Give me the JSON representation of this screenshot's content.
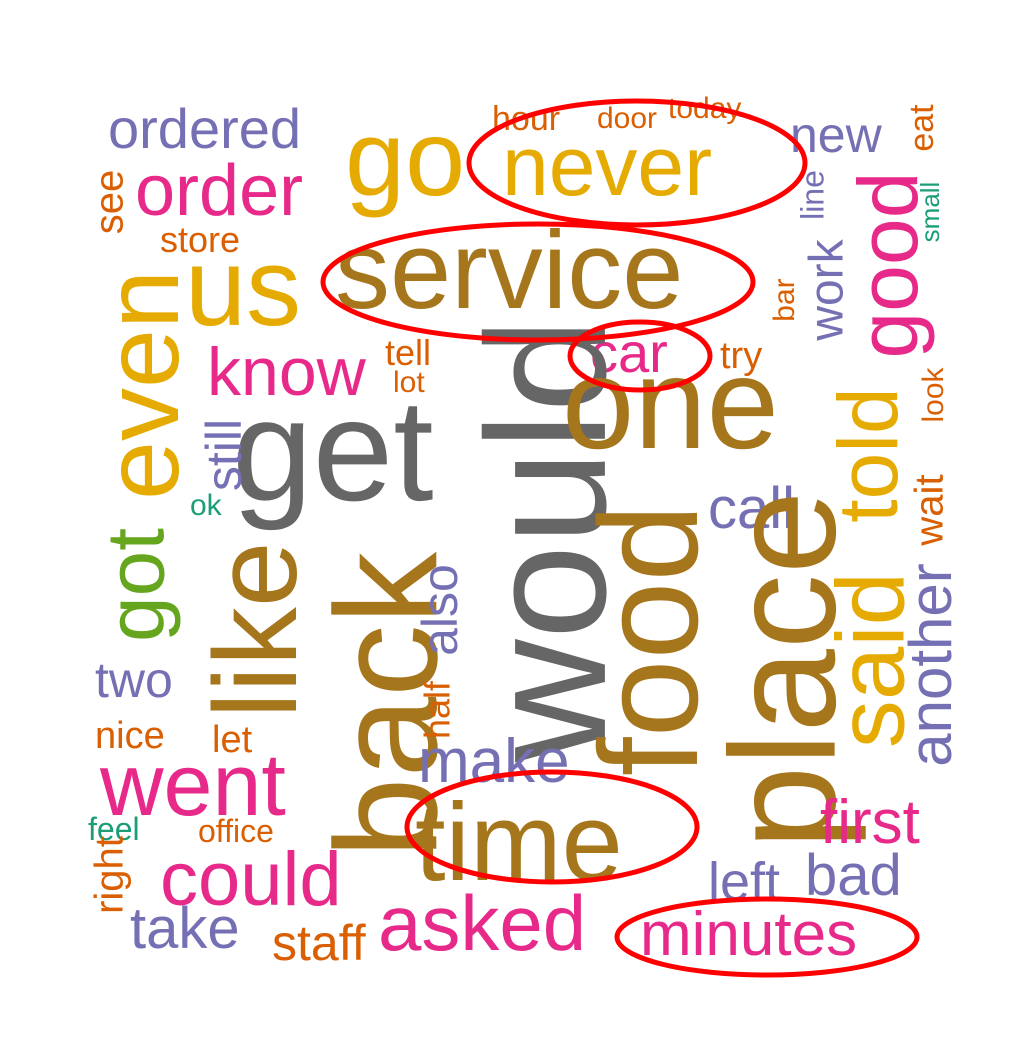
{
  "palette": {
    "purple": "#7570b3",
    "orange": "#d95f02",
    "mustard": "#e6ab02",
    "brown": "#a6761d",
    "pink": "#e7298a",
    "gray": "#666666",
    "green": "#66a61e",
    "teal": "#1b9e77",
    "highlight": "#ff0000"
  },
  "words": [
    {
      "text": "ordered",
      "color": "purple"
    },
    {
      "text": "go",
      "color": "mustard"
    },
    {
      "text": "hour",
      "color": "orange"
    },
    {
      "text": "door",
      "color": "orange"
    },
    {
      "text": "today",
      "color": "orange"
    },
    {
      "text": "never",
      "color": "mustard",
      "circled": true
    },
    {
      "text": "new",
      "color": "purple"
    },
    {
      "text": "eat",
      "color": "orange"
    },
    {
      "text": "see",
      "color": "orange"
    },
    {
      "text": "order",
      "color": "pink"
    },
    {
      "text": "store",
      "color": "orange"
    },
    {
      "text": "small",
      "color": "teal"
    },
    {
      "text": "line",
      "color": "purple"
    },
    {
      "text": "good",
      "color": "pink"
    },
    {
      "text": "us",
      "color": "mustard"
    },
    {
      "text": "service",
      "color": "brown",
      "circled": true
    },
    {
      "text": "work",
      "color": "purple"
    },
    {
      "text": "bar",
      "color": "orange"
    },
    {
      "text": "even",
      "color": "mustard"
    },
    {
      "text": "know",
      "color": "pink"
    },
    {
      "text": "tell",
      "color": "orange"
    },
    {
      "text": "lot",
      "color": "orange"
    },
    {
      "text": "car",
      "color": "pink",
      "circled": true
    },
    {
      "text": "try",
      "color": "orange"
    },
    {
      "text": "look",
      "color": "orange"
    },
    {
      "text": "would",
      "color": "gray"
    },
    {
      "text": "get",
      "color": "gray"
    },
    {
      "text": "one",
      "color": "brown"
    },
    {
      "text": "still",
      "color": "purple"
    },
    {
      "text": "ok",
      "color": "teal"
    },
    {
      "text": "told",
      "color": "mustard"
    },
    {
      "text": "wait",
      "color": "orange"
    },
    {
      "text": "call",
      "color": "purple"
    },
    {
      "text": "got",
      "color": "green"
    },
    {
      "text": "like",
      "color": "brown"
    },
    {
      "text": "back",
      "color": "brown"
    },
    {
      "text": "also",
      "color": "purple"
    },
    {
      "text": "food",
      "color": "brown"
    },
    {
      "text": "place",
      "color": "brown"
    },
    {
      "text": "said",
      "color": "mustard"
    },
    {
      "text": "another",
      "color": "purple"
    },
    {
      "text": "two",
      "color": "purple"
    },
    {
      "text": "half",
      "color": "orange"
    },
    {
      "text": "nice",
      "color": "orange"
    },
    {
      "text": "let",
      "color": "orange"
    },
    {
      "text": "make",
      "color": "purple"
    },
    {
      "text": "went",
      "color": "pink"
    },
    {
      "text": "first",
      "color": "pink"
    },
    {
      "text": "feel",
      "color": "teal"
    },
    {
      "text": "office",
      "color": "orange"
    },
    {
      "text": "time",
      "color": "brown",
      "circled": true
    },
    {
      "text": "right",
      "color": "orange"
    },
    {
      "text": "could",
      "color": "pink"
    },
    {
      "text": "left",
      "color": "purple"
    },
    {
      "text": "bad",
      "color": "purple"
    },
    {
      "text": "take",
      "color": "purple"
    },
    {
      "text": "staff",
      "color": "orange"
    },
    {
      "text": "asked",
      "color": "pink"
    },
    {
      "text": "minutes",
      "color": "pink",
      "circled": true
    }
  ]
}
